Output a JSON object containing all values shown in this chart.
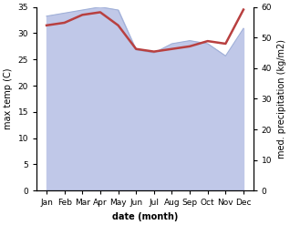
{
  "months": [
    "Jan",
    "Feb",
    "Mar",
    "Apr",
    "May",
    "Jun",
    "Jul",
    "Aug",
    "Sep",
    "Oct",
    "Nov",
    "Dec"
  ],
  "x": [
    0,
    1,
    2,
    3,
    4,
    5,
    6,
    7,
    8,
    9,
    10,
    11
  ],
  "temp": [
    31.5,
    32.0,
    33.5,
    34.0,
    31.5,
    27.0,
    26.5,
    27.0,
    27.5,
    28.5,
    28.0,
    34.5
  ],
  "precip": [
    57,
    58,
    59,
    60,
    59,
    46,
    45,
    48,
    49,
    48,
    44,
    53
  ],
  "temp_color": "#b84040",
  "precip_color_fill": "#c0c8e8",
  "precip_edge_color": "#a0b0d8",
  "ylabel_left": "max temp (C)",
  "ylabel_right": "med. precipitation (kg/m2)",
  "xlabel": "date (month)",
  "ylim_left": [
    0,
    35
  ],
  "ylim_right": [
    0,
    60
  ],
  "yticks_left": [
    0,
    5,
    10,
    15,
    20,
    25,
    30,
    35
  ],
  "yticks_right": [
    0,
    10,
    20,
    30,
    40,
    50,
    60
  ],
  "bg_color": "#ffffff",
  "title_fontsize": 7,
  "label_fontsize": 7,
  "tick_fontsize": 6.5
}
